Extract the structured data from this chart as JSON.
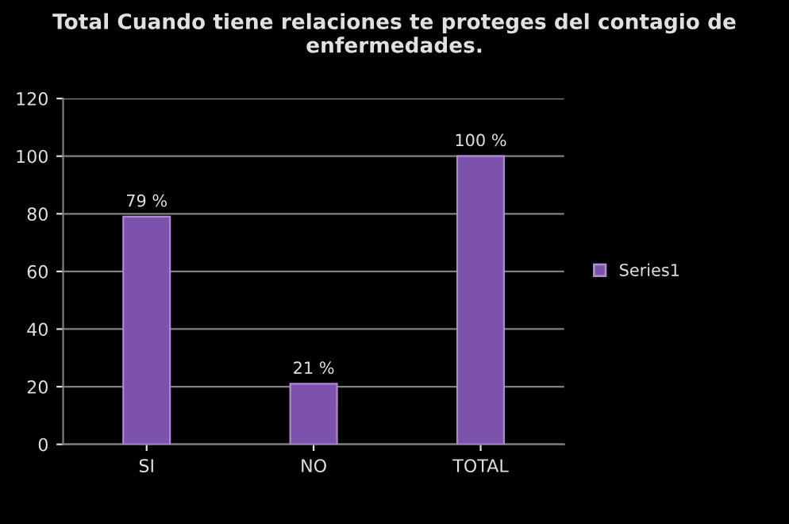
{
  "chart_data": {
    "type": "bar",
    "title": "Total Cuando tiene relaciones te proteges del contagio de enfermedades.",
    "categories": [
      "SI",
      "NO",
      "TOTAL"
    ],
    "series": [
      {
        "name": "Series1",
        "color": "#7d52ad",
        "values": [
          79,
          21,
          100
        ],
        "value_labels": [
          "79 %",
          "21 %",
          "100 %"
        ]
      }
    ],
    "ylim": [
      0,
      120
    ],
    "yticks": [
      0,
      20,
      40,
      60,
      80,
      100,
      120
    ],
    "grid": "y",
    "legend": "right"
  }
}
